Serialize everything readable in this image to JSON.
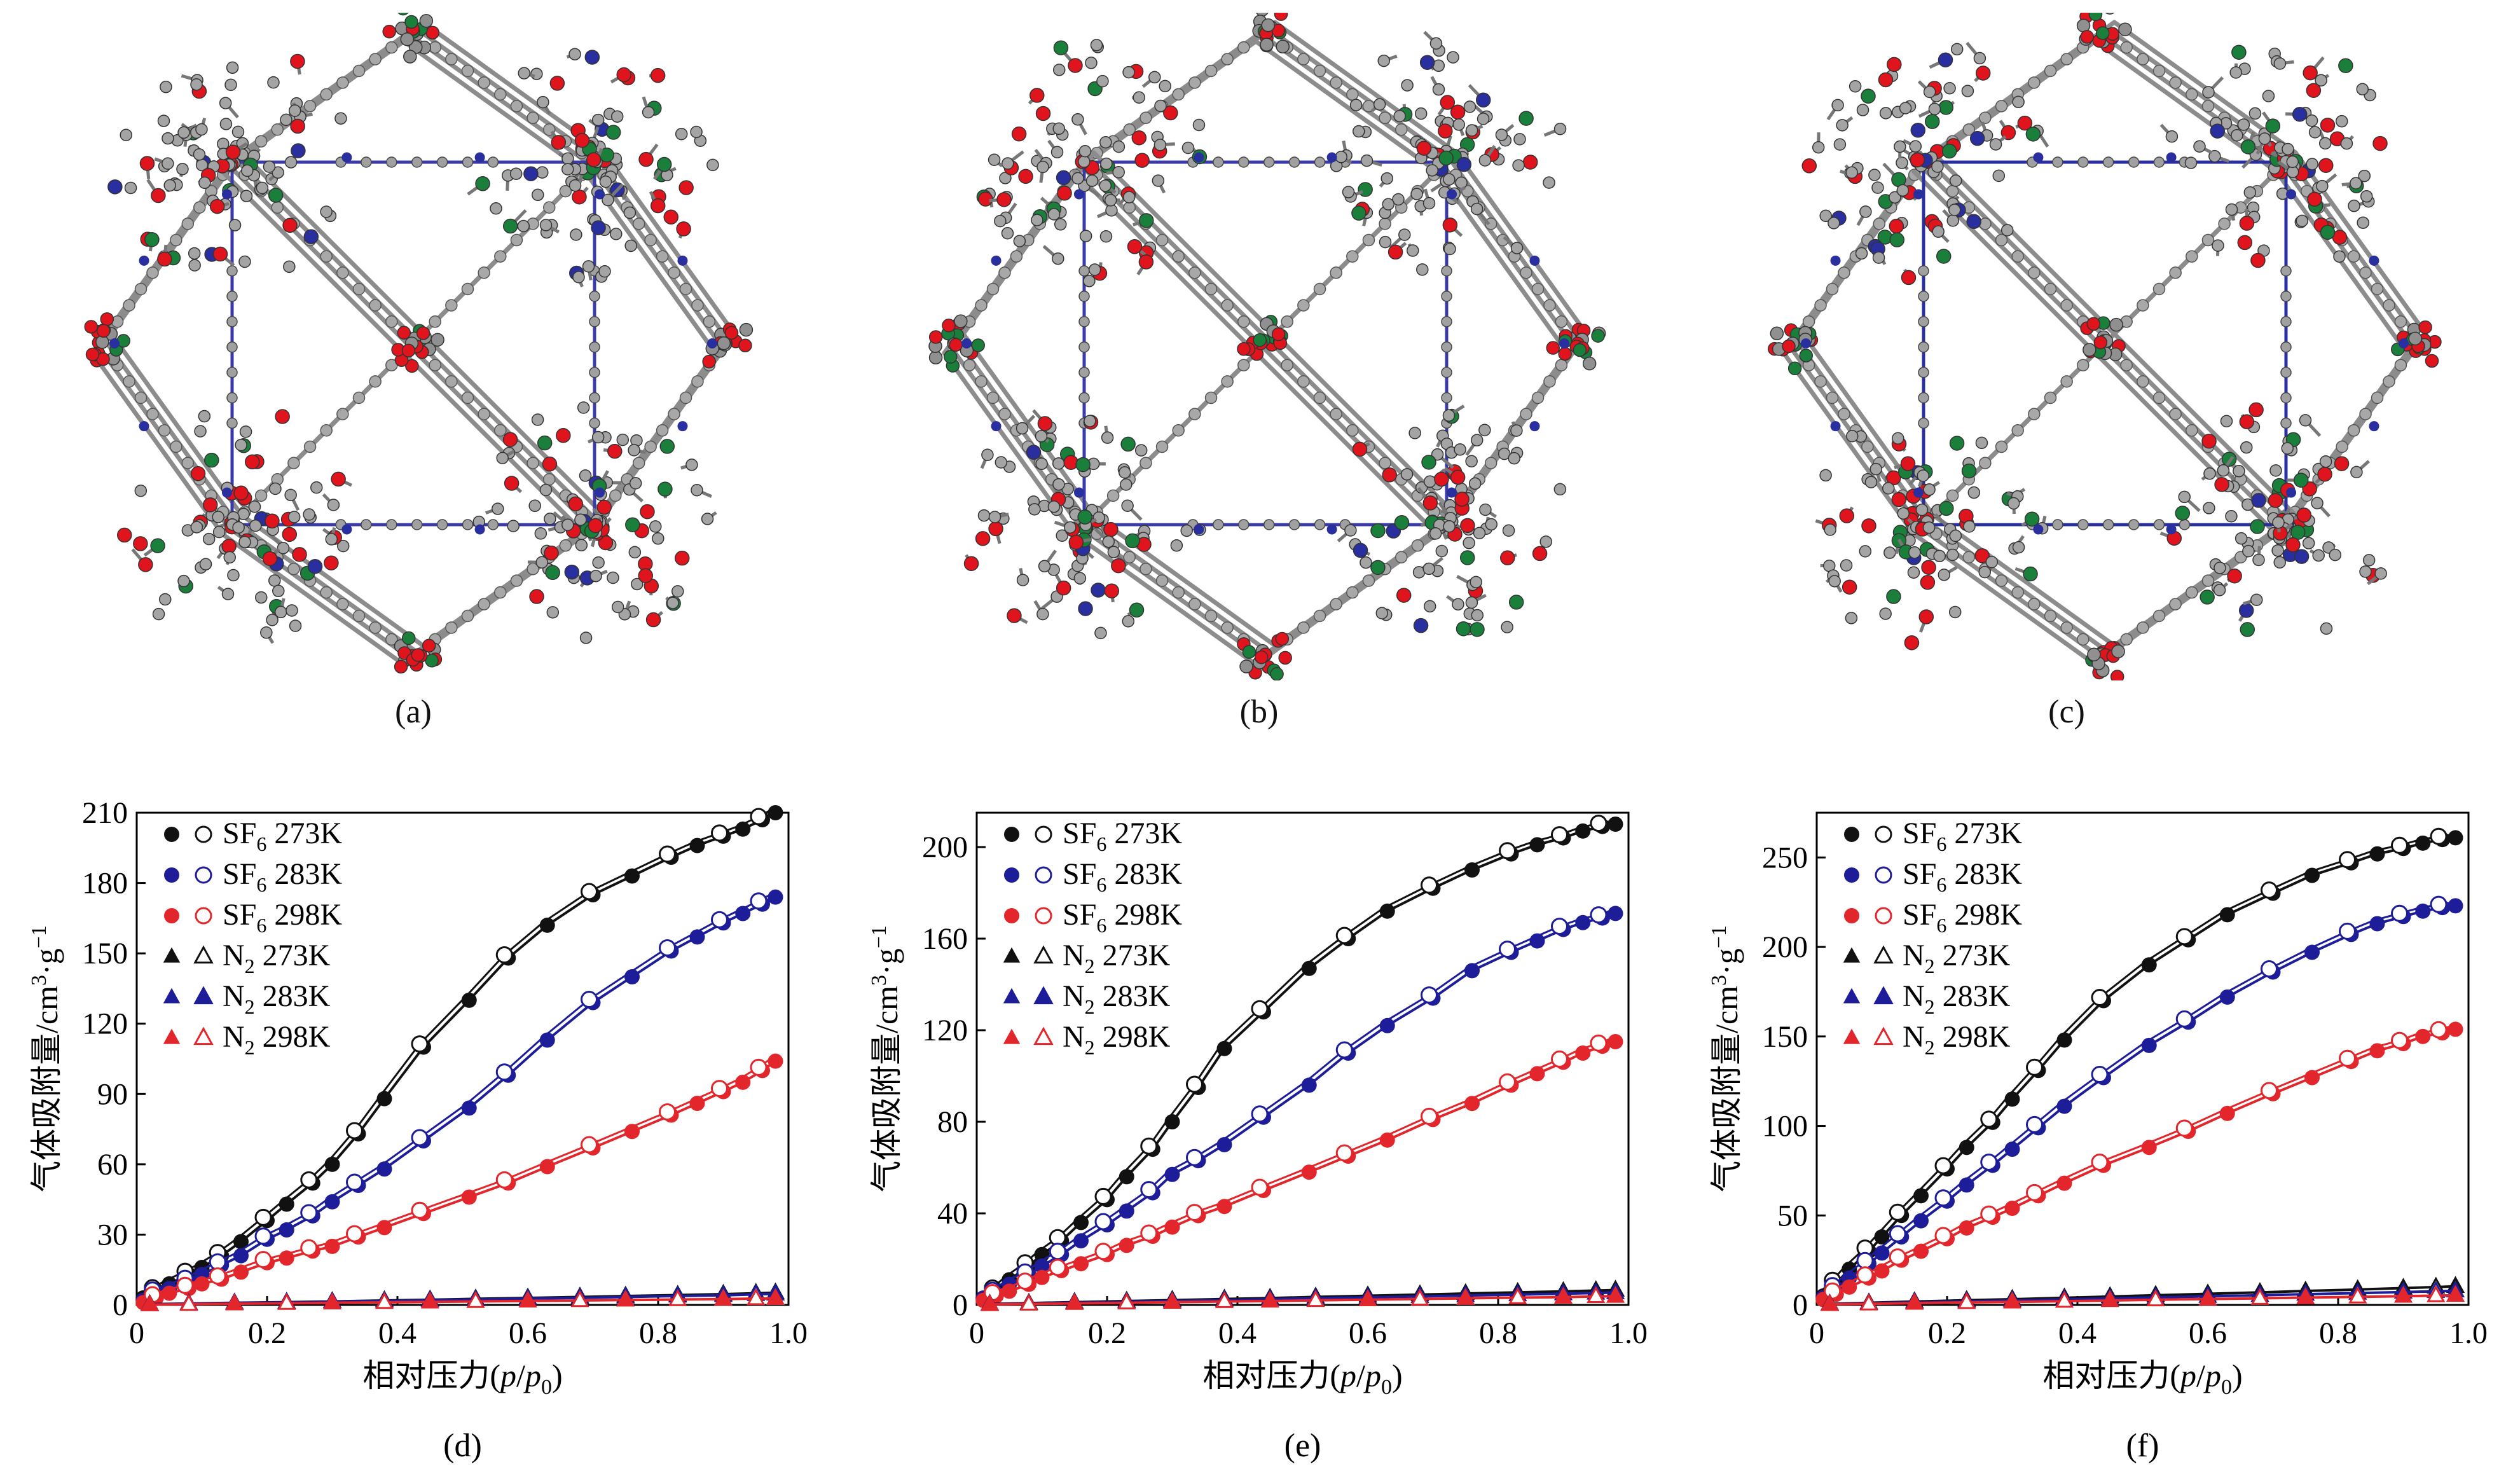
{
  "structure_captions": [
    "(a)",
    "(b)",
    "(c)"
  ],
  "structure_colors": {
    "carbon": "#9a9a9a",
    "oxygen": "#e0141c",
    "metal": "#1a7f3a",
    "nitrogen": "#2a2fa0"
  },
  "legend_labels": [
    {
      "gas": "SF",
      "sub": "6",
      "temp": " 273K"
    },
    {
      "gas": "SF",
      "sub": "6",
      "temp": " 283K"
    },
    {
      "gas": "SF",
      "sub": "6",
      "temp": " 298K"
    },
    {
      "gas": "N",
      "sub": "2",
      "temp": " 273K"
    },
    {
      "gas": "N",
      "sub": "2",
      "temp": " 283K"
    },
    {
      "gas": "N",
      "sub": "2",
      "temp": " 298K"
    }
  ],
  "series_colors": [
    "#111111",
    "#1d1d99",
    "#e3262b",
    "#111111",
    "#1d1d99",
    "#e3262b"
  ],
  "series_markers": [
    "circle",
    "circle",
    "circle",
    "triangle",
    "triangle",
    "triangle"
  ],
  "chart_data": [
    {
      "type": "scatter",
      "caption": "(d)",
      "xlabel": "相对压力(p/p0)",
      "xlabel_parts": [
        "相对压力(",
        "p",
        "/",
        "p",
        "0",
        ")"
      ],
      "ylabel": "气体吸附量/cm3·g-1",
      "ylabel_parts": [
        "气体吸附量/cm",
        "3",
        "·g",
        "−1"
      ],
      "xlim": [
        0,
        1.0
      ],
      "ylim": [
        0,
        210
      ],
      "xticks": [
        "0",
        "0.2",
        "0.4",
        "0.6",
        "0.8",
        "1.0"
      ],
      "yticks": [
        "0",
        "30",
        "60",
        "90",
        "120",
        "150",
        "180",
        "210"
      ],
      "ytick_values": [
        0,
        30,
        60,
        90,
        120,
        150,
        180,
        210
      ],
      "series": [
        {
          "name": "SF6 273K",
          "x": [
            0.01,
            0.03,
            0.05,
            0.08,
            0.1,
            0.13,
            0.16,
            0.2,
            0.23,
            0.27,
            0.3,
            0.34,
            0.38,
            0.44,
            0.51,
            0.57,
            0.63,
            0.7,
            0.76,
            0.82,
            0.86,
            0.9,
            0.93,
            0.96,
            0.98
          ],
          "y": [
            3,
            6,
            9,
            13,
            16,
            21,
            27,
            36,
            43,
            52,
            60,
            73,
            88,
            110,
            130,
            148,
            162,
            175,
            183,
            191,
            196,
            200,
            203,
            207,
            210
          ]
        },
        {
          "name": "SF6 283K",
          "x": [
            0.01,
            0.03,
            0.05,
            0.08,
            0.1,
            0.13,
            0.16,
            0.2,
            0.23,
            0.27,
            0.3,
            0.34,
            0.38,
            0.44,
            0.51,
            0.57,
            0.63,
            0.7,
            0.76,
            0.82,
            0.86,
            0.9,
            0.93,
            0.96,
            0.98
          ],
          "y": [
            2,
            5,
            7,
            10,
            13,
            17,
            21,
            28,
            32,
            38,
            44,
            51,
            58,
            70,
            84,
            98,
            113,
            129,
            140,
            151,
            157,
            163,
            167,
            171,
            174
          ]
        },
        {
          "name": "SF6 298K",
          "x": [
            0.01,
            0.03,
            0.05,
            0.08,
            0.1,
            0.13,
            0.16,
            0.2,
            0.23,
            0.27,
            0.3,
            0.34,
            0.38,
            0.44,
            0.51,
            0.57,
            0.63,
            0.7,
            0.76,
            0.82,
            0.86,
            0.9,
            0.93,
            0.96,
            0.98
          ],
          "y": [
            1,
            3,
            5,
            7,
            9,
            11,
            14,
            18,
            20,
            23,
            25,
            29,
            33,
            39,
            46,
            52,
            59,
            67,
            74,
            81,
            86,
            91,
            95,
            100,
            104
          ]
        },
        {
          "name": "N2 273K",
          "x": [
            0.02,
            0.08,
            0.15,
            0.23,
            0.3,
            0.38,
            0.45,
            0.52,
            0.6,
            0.68,
            0.75,
            0.83,
            0.9,
            0.95,
            0.98
          ],
          "y": [
            0.3,
            0.6,
            0.9,
            1.2,
            1.5,
            1.9,
            2.2,
            2.6,
            3.0,
            3.4,
            3.8,
            4.2,
            4.6,
            5.0,
            5.2
          ]
        },
        {
          "name": "N2 283K",
          "x": [
            0.02,
            0.08,
            0.15,
            0.23,
            0.3,
            0.38,
            0.45,
            0.52,
            0.6,
            0.68,
            0.75,
            0.83,
            0.9,
            0.95,
            0.98
          ],
          "y": [
            0.2,
            0.5,
            0.8,
            1.1,
            1.4,
            1.7,
            2.0,
            2.3,
            2.7,
            3.0,
            3.4,
            3.8,
            4.1,
            4.5,
            4.7
          ]
        },
        {
          "name": "N2 298K",
          "x": [
            0.02,
            0.08,
            0.15,
            0.23,
            0.3,
            0.38,
            0.45,
            0.52,
            0.6,
            0.68,
            0.75,
            0.83,
            0.9,
            0.95,
            0.98
          ],
          "y": [
            0.1,
            0.3,
            0.5,
            0.7,
            0.9,
            1.1,
            1.3,
            1.5,
            1.7,
            1.9,
            2.1,
            2.3,
            2.5,
            2.7,
            2.8
          ]
        }
      ]
    },
    {
      "type": "scatter",
      "caption": "(e)",
      "xlabel": "相对压力(p/p0)",
      "xlabel_parts": [
        "相对压力(",
        "p",
        "/",
        "p",
        "0",
        ")"
      ],
      "ylabel": "气体吸附量/cm3·g-1",
      "ylabel_parts": [
        "气体吸附量/cm",
        "3",
        "·g",
        "−1"
      ],
      "xlim": [
        0,
        1.0
      ],
      "ylim": [
        0,
        215
      ],
      "xticks": [
        "0",
        "0.2",
        "0.4",
        "0.6",
        "0.8",
        "1.0"
      ],
      "yticks": [
        "0",
        "40",
        "80",
        "120",
        "160",
        "200"
      ],
      "ytick_values": [
        0,
        40,
        80,
        120,
        160,
        200
      ],
      "series": [
        {
          "name": "SF6 273K",
          "x": [
            0.01,
            0.03,
            0.05,
            0.08,
            0.1,
            0.13,
            0.16,
            0.2,
            0.23,
            0.27,
            0.3,
            0.34,
            0.38,
            0.44,
            0.51,
            0.57,
            0.63,
            0.7,
            0.76,
            0.82,
            0.86,
            0.9,
            0.93,
            0.96,
            0.98
          ],
          "y": [
            3,
            6,
            11,
            17,
            22,
            28,
            36,
            46,
            56,
            68,
            80,
            95,
            112,
            128,
            147,
            160,
            172,
            182,
            190,
            197,
            201,
            204,
            207,
            209,
            210
          ]
        },
        {
          "name": "SF6 283K",
          "x": [
            0.01,
            0.03,
            0.05,
            0.08,
            0.1,
            0.13,
            0.16,
            0.2,
            0.23,
            0.27,
            0.3,
            0.34,
            0.38,
            0.44,
            0.51,
            0.57,
            0.63,
            0.7,
            0.76,
            0.82,
            0.86,
            0.9,
            0.93,
            0.96,
            0.98
          ],
          "y": [
            3,
            5,
            9,
            13,
            17,
            22,
            28,
            35,
            41,
            49,
            57,
            63,
            70,
            82,
            96,
            110,
            122,
            134,
            146,
            154,
            159,
            164,
            167,
            169,
            171
          ]
        },
        {
          "name": "SF6 298K",
          "x": [
            0.01,
            0.03,
            0.05,
            0.08,
            0.1,
            0.13,
            0.16,
            0.2,
            0.23,
            0.27,
            0.3,
            0.34,
            0.38,
            0.44,
            0.51,
            0.57,
            0.63,
            0.7,
            0.76,
            0.82,
            0.86,
            0.9,
            0.93,
            0.96,
            0.98
          ],
          "y": [
            2,
            4,
            6,
            9,
            12,
            15,
            18,
            22,
            26,
            30,
            34,
            39,
            43,
            50,
            58,
            65,
            72,
            81,
            88,
            96,
            101,
            106,
            110,
            113,
            115
          ]
        },
        {
          "name": "N2 273K",
          "x": [
            0.02,
            0.08,
            0.15,
            0.23,
            0.3,
            0.38,
            0.45,
            0.52,
            0.6,
            0.68,
            0.75,
            0.83,
            0.9,
            0.95,
            0.98
          ],
          "y": [
            0.4,
            0.8,
            1.2,
            1.7,
            2.1,
            2.6,
            3.0,
            3.5,
            4.0,
            4.5,
            5.0,
            5.5,
            5.9,
            6.3,
            6.5
          ]
        },
        {
          "name": "N2 283K",
          "x": [
            0.02,
            0.08,
            0.15,
            0.23,
            0.3,
            0.38,
            0.45,
            0.52,
            0.6,
            0.68,
            0.75,
            0.83,
            0.9,
            0.95,
            0.98
          ],
          "y": [
            0.3,
            0.6,
            1.0,
            1.4,
            1.7,
            2.1,
            2.5,
            2.9,
            3.3,
            3.7,
            4.1,
            4.5,
            4.9,
            5.2,
            5.4
          ]
        },
        {
          "name": "N2 298K",
          "x": [
            0.02,
            0.08,
            0.15,
            0.23,
            0.3,
            0.38,
            0.45,
            0.52,
            0.6,
            0.68,
            0.75,
            0.83,
            0.9,
            0.95,
            0.98
          ],
          "y": [
            0.2,
            0.4,
            0.7,
            0.9,
            1.2,
            1.5,
            1.7,
            2.0,
            2.3,
            2.6,
            2.9,
            3.2,
            3.4,
            3.7,
            3.8
          ]
        }
      ]
    },
    {
      "type": "scatter",
      "caption": "(f)",
      "xlabel": "相对压力(p/p0)",
      "xlabel_parts": [
        "相对压力(",
        "p",
        "/",
        "p",
        "0",
        ")"
      ],
      "ylabel": "气体吸附量/cm3·g-1",
      "ylabel_parts": [
        "气体吸附量/cm",
        "3",
        "·g",
        "−1"
      ],
      "xlim": [
        0,
        1.0
      ],
      "ylim": [
        0,
        275
      ],
      "xticks": [
        "0",
        "0.2",
        "0.4",
        "0.6",
        "0.8",
        "1.0"
      ],
      "yticks": [
        "0",
        "50",
        "100",
        "150",
        "200",
        "250"
      ],
      "ytick_values": [
        0,
        50,
        100,
        150,
        200,
        250
      ],
      "series": [
        {
          "name": "SF6 273K",
          "x": [
            0.01,
            0.03,
            0.05,
            0.08,
            0.1,
            0.13,
            0.16,
            0.2,
            0.23,
            0.27,
            0.3,
            0.34,
            0.38,
            0.44,
            0.51,
            0.57,
            0.63,
            0.7,
            0.76,
            0.82,
            0.86,
            0.9,
            0.93,
            0.96,
            0.98
          ],
          "y": [
            5,
            12,
            20,
            30,
            38,
            50,
            61,
            76,
            88,
            102,
            115,
            131,
            148,
            170,
            190,
            204,
            218,
            230,
            240,
            247,
            252,
            255,
            258,
            260,
            261
          ]
        },
        {
          "name": "SF6 283K",
          "x": [
            0.01,
            0.03,
            0.05,
            0.08,
            0.1,
            0.13,
            0.16,
            0.2,
            0.23,
            0.27,
            0.3,
            0.34,
            0.38,
            0.44,
            0.51,
            0.57,
            0.63,
            0.7,
            0.76,
            0.82,
            0.86,
            0.9,
            0.93,
            0.96,
            0.98
          ],
          "y": [
            4,
            9,
            15,
            23,
            29,
            38,
            47,
            58,
            67,
            78,
            87,
            99,
            111,
            127,
            145,
            158,
            172,
            186,
            197,
            207,
            213,
            217,
            220,
            222,
            223
          ]
        },
        {
          "name": "SF6 298K",
          "x": [
            0.01,
            0.03,
            0.05,
            0.08,
            0.1,
            0.13,
            0.16,
            0.2,
            0.23,
            0.27,
            0.3,
            0.34,
            0.38,
            0.44,
            0.51,
            0.57,
            0.63,
            0.7,
            0.76,
            0.82,
            0.86,
            0.9,
            0.93,
            0.96,
            0.98
          ],
          "y": [
            3,
            6,
            10,
            15,
            19,
            25,
            30,
            37,
            43,
            49,
            54,
            61,
            68,
            78,
            88,
            97,
            107,
            118,
            127,
            136,
            142,
            146,
            150,
            152,
            154
          ]
        },
        {
          "name": "N2 273K",
          "x": [
            0.02,
            0.08,
            0.15,
            0.23,
            0.3,
            0.38,
            0.45,
            0.52,
            0.6,
            0.68,
            0.75,
            0.83,
            0.9,
            0.95,
            0.98
          ],
          "y": [
            0.6,
            1.2,
            1.9,
            2.6,
            3.2,
            4.0,
            4.7,
            5.4,
            6.2,
            7.0,
            7.8,
            8.6,
            9.4,
            10.0,
            10.4
          ]
        },
        {
          "name": "N2 283K",
          "x": [
            0.02,
            0.08,
            0.15,
            0.23,
            0.3,
            0.38,
            0.45,
            0.52,
            0.6,
            0.68,
            0.75,
            0.83,
            0.9,
            0.95,
            0.98
          ],
          "y": [
            0.4,
            0.9,
            1.5,
            2.0,
            2.5,
            3.1,
            3.6,
            4.2,
            4.8,
            5.4,
            6.0,
            6.6,
            7.2,
            7.6,
            7.9
          ]
        },
        {
          "name": "N2 298K",
          "x": [
            0.02,
            0.08,
            0.15,
            0.23,
            0.3,
            0.38,
            0.45,
            0.52,
            0.6,
            0.68,
            0.75,
            0.83,
            0.9,
            0.95,
            0.98
          ],
          "y": [
            0.3,
            0.6,
            1.0,
            1.4,
            1.7,
            2.1,
            2.5,
            2.9,
            3.3,
            3.7,
            4.1,
            4.5,
            4.9,
            5.2,
            5.4
          ]
        }
      ]
    }
  ]
}
